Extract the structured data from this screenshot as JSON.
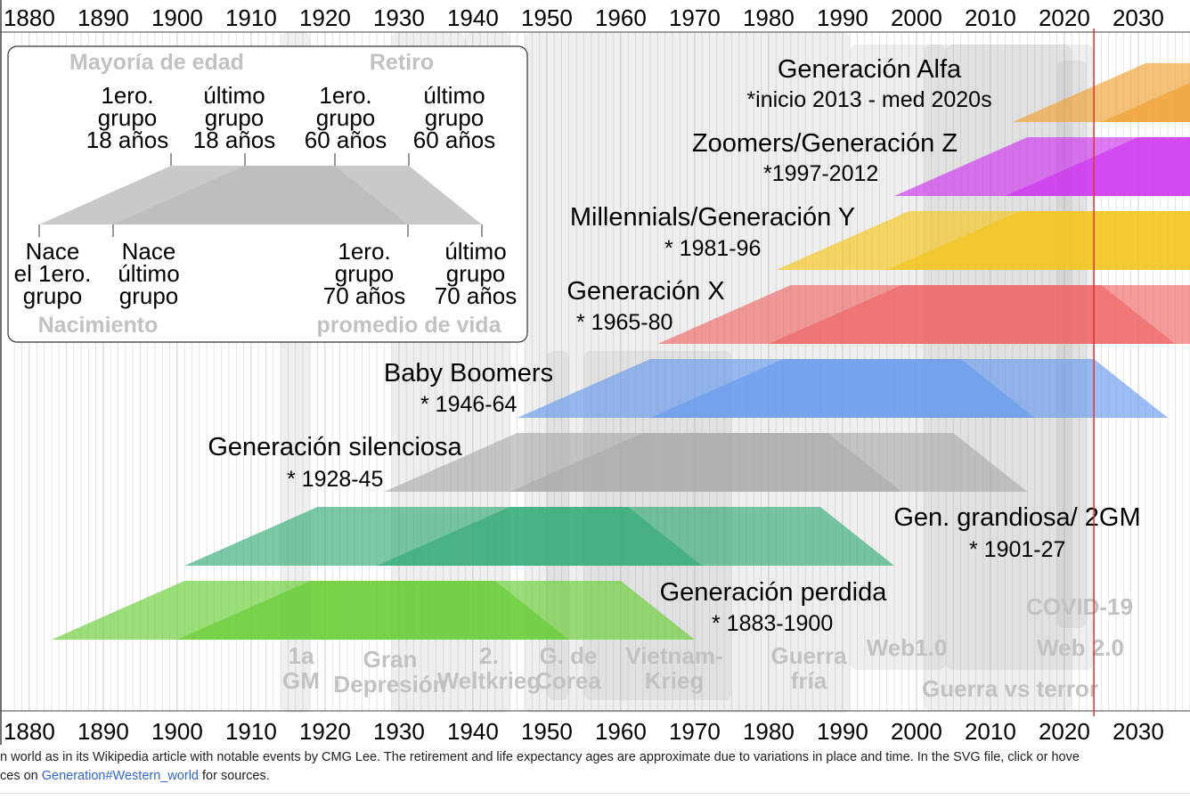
{
  "axis": {
    "year_min": 1877,
    "year_max": 2037,
    "tick_labels": [
      "1880",
      "1890",
      "1900",
      "1910",
      "1920",
      "1930",
      "1940",
      "1950",
      "1960",
      "1970",
      "1980",
      "1990",
      "2000",
      "2010",
      "2020",
      "2030"
    ],
    "current_year_marker": 2024
  },
  "legend": {
    "col_left_header": "Mayoría de edad",
    "col_right_header": "Retiro",
    "top_labels": [
      {
        "text": [
          "1ero.",
          "grupo",
          "18 años"
        ]
      },
      {
        "text": [
          "último",
          "grupo",
          "18 años"
        ]
      },
      {
        "text": [
          "1ero.",
          "grupo",
          "60 años"
        ]
      },
      {
        "text": [
          "último",
          "grupo",
          "60 años"
        ]
      }
    ],
    "bottom_labels": [
      {
        "text": [
          "Nace",
          "el 1ero.",
          "grupo"
        ]
      },
      {
        "text": [
          "Nace",
          "último",
          "grupo"
        ]
      },
      {
        "text": [
          "1ero.",
          "grupo",
          "70 años"
        ]
      },
      {
        "text": [
          "último",
          "grupo",
          "70 años"
        ]
      }
    ],
    "footer_left": "Nacimiento",
    "footer_right": "promedio de vida"
  },
  "events": [
    {
      "label": [
        "1a",
        "GM"
      ],
      "start": 1914,
      "end": 1918
    },
    {
      "label": [
        "Gran",
        "Depresión"
      ],
      "start": 1929,
      "end": 1939
    },
    {
      "label": [
        "2.",
        "Weltkrieg"
      ],
      "start": 1939,
      "end": 1945
    },
    {
      "label": [
        "G. de",
        "Corea"
      ],
      "start": 1950,
      "end": 1953
    },
    {
      "label": [
        "Vietnam-",
        "Krieg"
      ],
      "start": 1955,
      "end": 1975
    },
    {
      "label": [
        "Guerra",
        "fría"
      ],
      "start": 1947,
      "end": 1991
    },
    {
      "label": [
        "Web1.0"
      ],
      "start": 1991,
      "end": 2004
    },
    {
      "label": [
        "Web 2.0"
      ],
      "start": 2004,
      "end": 2024
    },
    {
      "label": [
        "COVID-19"
      ],
      "start": 2019,
      "end": 2023
    },
    {
      "label": [
        "Guerra vs terror"
      ],
      "start": 2001,
      "end": 2021
    }
  ],
  "generations": [
    {
      "name": "Generación perdida",
      "years": "* 1883-1900",
      "birth_start": 1883,
      "birth_end": 1900,
      "color": "#66cc33"
    },
    {
      "name": "Gen. grandiosa/ 2GM",
      "years": "* 1901-27",
      "birth_start": 1901,
      "birth_end": 1927,
      "color": "#33aa77"
    },
    {
      "name": "Generación silenciosa",
      "years": "* 1928-45",
      "birth_start": 1928,
      "birth_end": 1945,
      "color": "#aaaaaa"
    },
    {
      "name": "Baby Boomers",
      "years": "* 1946-64",
      "birth_start": 1946,
      "birth_end": 1964,
      "color": "#6699ee"
    },
    {
      "name": "Generación X",
      "years": "* 1965-80",
      "birth_start": 1965,
      "birth_end": 1980,
      "color": "#ee6666"
    },
    {
      "name": "Millennials/Generación Y",
      "years": "* 1981-96",
      "birth_start": 1981,
      "birth_end": 1996,
      "color": "#f5c518"
    },
    {
      "name": "Zoomers/Generación Z",
      "years": "*1997-2012",
      "birth_start": 1997,
      "birth_end": 2012,
      "color": "#cc33ee"
    },
    {
      "name": "Generación Alfa",
      "years": "*inicio 2013 - med 2020s",
      "birth_start": 2013,
      "birth_end": 2025,
      "color": "#f0a030"
    }
  ],
  "caption": {
    "line1": "n world as in its Wikipedia article with notable events by CMG Lee. The retirement and life expectancy ages are approximate due to variations in place and time. In the SVG file, click or hove",
    "line2_prefix": "ces on ",
    "line2_link": "Generation#Western_world",
    "line2_suffix": " for sources."
  }
}
